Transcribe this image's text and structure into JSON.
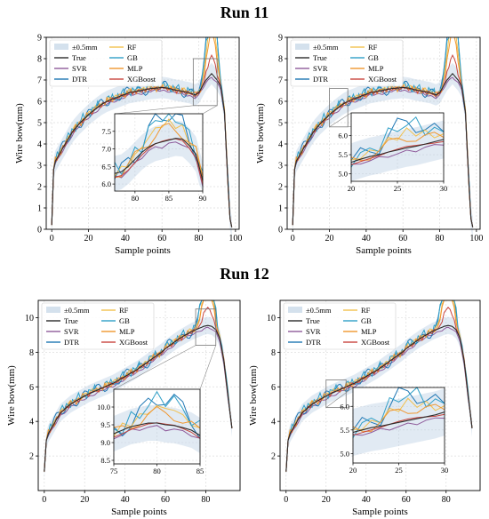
{
  "figure": {
    "run_titles": [
      "Run 11",
      "Run 12"
    ]
  },
  "legend_entries": [
    "±0.5mm",
    "True",
    "SVR",
    "DTR",
    "RF",
    "GB",
    "MLP",
    "XGBoost"
  ],
  "series_colors": {
    "True": "#2b2b2b",
    "SVR": "#8e5a9a",
    "DTR": "#1f77b4",
    "RF": "#f2c14e",
    "GB": "#2f9fc7",
    "MLP": "#f0962e",
    "XGBoost": "#c9453e",
    "band": "#aac4dc"
  },
  "chart_data": [
    {
      "type": "line",
      "run": "Run 11",
      "xlabel": "Sample points",
      "ylabel": "Wire bow(mm)",
      "xlim": [
        -3,
        102
      ],
      "ylim": [
        0,
        9
      ],
      "xticks": [
        0,
        20,
        40,
        60,
        80,
        100
      ],
      "yticks": [
        0,
        1,
        2,
        3,
        4,
        5,
        6,
        7,
        8,
        9
      ],
      "grid": true,
      "legend_position": "top-left",
      "band": "±0.5mm around True",
      "true_x": [
        0,
        1,
        2,
        4,
        6,
        8,
        10,
        12,
        15,
        18,
        21,
        24,
        27,
        30,
        33,
        36,
        39,
        42,
        45,
        48,
        51,
        54,
        57,
        60,
        63,
        66,
        69,
        72,
        75,
        78,
        80,
        82,
        84,
        86,
        87,
        88,
        90,
        92,
        94,
        96,
        97,
        98
      ],
      "true_y": [
        0.2,
        2.8,
        3.2,
        3.5,
        3.8,
        4.1,
        4.4,
        4.65,
        4.95,
        5.2,
        5.45,
        5.65,
        5.85,
        6.0,
        6.1,
        6.2,
        6.3,
        6.4,
        6.45,
        6.5,
        6.55,
        6.6,
        6.62,
        6.65,
        6.62,
        6.55,
        6.5,
        6.45,
        6.4,
        6.3,
        6.4,
        6.7,
        7.0,
        7.2,
        7.3,
        7.2,
        7.0,
        6.7,
        5.5,
        2.0,
        0.5,
        0.1
      ],
      "zoom": {
        "xlim": [
          77,
          90
        ],
        "ylim": [
          5.8,
          8.0
        ],
        "xticks": [
          80,
          85,
          90
        ],
        "yticks": [
          6.0,
          6.5,
          7.0,
          7.5
        ],
        "ytick_labels": [
          "6.0",
          "6.5",
          "7.0",
          "7.5"
        ],
        "true_x": [
          77,
          78,
          79,
          80,
          81,
          82,
          83,
          84,
          85,
          86,
          87,
          88,
          89,
          90
        ],
        "true_y": [
          6.3,
          6.35,
          6.5,
          6.7,
          6.9,
          7.05,
          7.15,
          7.2,
          7.25,
          7.3,
          7.28,
          7.1,
          6.85,
          6.1
        ]
      }
    },
    {
      "type": "line",
      "run": "Run 11",
      "xlabel": "Sample points",
      "ylabel": "Wire bow(mm)",
      "xlim": [
        -3,
        102
      ],
      "ylim": [
        0,
        9
      ],
      "xticks": [
        0,
        20,
        40,
        60,
        80,
        100
      ],
      "yticks": [
        0,
        1,
        2,
        3,
        4,
        5,
        6,
        7,
        8,
        9
      ],
      "grid": true,
      "legend_position": "top-left",
      "band": "±0.5mm around True",
      "true_x": [
        0,
        1,
        2,
        4,
        6,
        8,
        10,
        12,
        15,
        18,
        21,
        24,
        27,
        30,
        33,
        36,
        39,
        42,
        45,
        48,
        51,
        54,
        57,
        60,
        63,
        66,
        69,
        72,
        75,
        78,
        80,
        82,
        84,
        86,
        87,
        88,
        90,
        92,
        94,
        96,
        97,
        98
      ],
      "true_y": [
        0.2,
        2.8,
        3.2,
        3.5,
        3.8,
        4.1,
        4.4,
        4.65,
        4.95,
        5.2,
        5.45,
        5.65,
        5.85,
        6.0,
        6.1,
        6.2,
        6.3,
        6.4,
        6.45,
        6.5,
        6.55,
        6.6,
        6.62,
        6.65,
        6.62,
        6.55,
        6.5,
        6.45,
        6.4,
        6.3,
        6.4,
        6.7,
        7.0,
        7.2,
        7.3,
        7.2,
        7.0,
        6.7,
        5.5,
        2.0,
        0.5,
        0.1
      ],
      "zoom": {
        "xlim": [
          20,
          30
        ],
        "ylim": [
          4.8,
          6.6
        ],
        "xticks": [
          20,
          25,
          30
        ],
        "yticks": [
          5.0,
          5.5,
          6.0
        ],
        "ytick_labels": [
          "5.0",
          "5.5",
          "6.0"
        ],
        "true_x": [
          20,
          21,
          22,
          23,
          24,
          25,
          26,
          27,
          28,
          29,
          30
        ],
        "true_y": [
          5.3,
          5.38,
          5.45,
          5.5,
          5.57,
          5.62,
          5.68,
          5.72,
          5.78,
          5.84,
          5.9
        ]
      }
    },
    {
      "type": "line",
      "run": "Run 12",
      "xlabel": "Sample points",
      "ylabel": "Wire bow(mm)",
      "xlim": [
        -3,
        97
      ],
      "ylim": [
        0,
        11
      ],
      "xticks": [
        0,
        20,
        40,
        60,
        80
      ],
      "yticks": [
        2,
        4,
        6,
        8,
        10
      ],
      "grid": true,
      "legend_position": "top-left",
      "band": "±0.5mm around True",
      "true_x": [
        0,
        1,
        2,
        4,
        6,
        8,
        10,
        13,
        16,
        19,
        22,
        25,
        28,
        31,
        34,
        37,
        40,
        43,
        46,
        49,
        52,
        55,
        58,
        61,
        64,
        67,
        70,
        73,
        76,
        79,
        81,
        83,
        85,
        87,
        89,
        91,
        93
      ],
      "true_y": [
        1.1,
        2.9,
        3.3,
        3.7,
        4.1,
        4.5,
        4.7,
        5.0,
        5.2,
        5.4,
        5.6,
        5.75,
        5.9,
        6.05,
        6.2,
        6.4,
        6.6,
        6.8,
        7.0,
        7.25,
        7.5,
        7.75,
        8.0,
        8.3,
        8.55,
        8.8,
        9.0,
        9.2,
        9.35,
        9.5,
        9.55,
        9.5,
        9.3,
        8.8,
        7.5,
        5.5,
        3.6
      ],
      "zoom": {
        "xlim": [
          75,
          85
        ],
        "ylim": [
          8.4,
          10.5
        ],
        "xticks": [
          75,
          80,
          85
        ],
        "yticks": [
          8.5,
          9.0,
          9.5,
          10.0
        ],
        "ytick_labels": [
          "8.5",
          "9.0",
          "9.5",
          "10.0"
        ],
        "true_x": [
          75,
          76,
          77,
          78,
          79,
          80,
          81,
          82,
          83,
          84,
          85
        ],
        "true_y": [
          9.25,
          9.35,
          9.45,
          9.5,
          9.55,
          9.55,
          9.5,
          9.48,
          9.42,
          9.35,
          9.2
        ]
      }
    },
    {
      "type": "line",
      "run": "Run 12",
      "xlabel": "Sample points",
      "ylabel": "Wire bow(mm)",
      "xlim": [
        -3,
        97
      ],
      "ylim": [
        0,
        11
      ],
      "xticks": [
        0,
        20,
        40,
        60,
        80
      ],
      "yticks": [
        2,
        4,
        6,
        8,
        10
      ],
      "grid": true,
      "legend_position": "top-left",
      "band": "±0.5mm around True",
      "true_x": [
        0,
        1,
        2,
        4,
        6,
        8,
        10,
        13,
        16,
        19,
        22,
        25,
        28,
        31,
        34,
        37,
        40,
        43,
        46,
        49,
        52,
        55,
        58,
        61,
        64,
        67,
        70,
        73,
        76,
        79,
        81,
        83,
        85,
        87,
        89,
        91,
        93
      ],
      "true_y": [
        1.1,
        2.9,
        3.3,
        3.7,
        4.1,
        4.5,
        4.7,
        5.0,
        5.2,
        5.4,
        5.6,
        5.75,
        5.9,
        6.05,
        6.2,
        6.4,
        6.6,
        6.8,
        7.0,
        7.25,
        7.5,
        7.75,
        8.0,
        8.3,
        8.55,
        8.8,
        9.0,
        9.2,
        9.35,
        9.5,
        9.55,
        9.5,
        9.3,
        8.8,
        7.5,
        5.5,
        3.6
      ],
      "zoom": {
        "xlim": [
          20,
          30
        ],
        "ylim": [
          4.8,
          6.4
        ],
        "xticks": [
          20,
          25,
          30
        ],
        "yticks": [
          5.0,
          5.5,
          6.0
        ],
        "ytick_labels": [
          "5.0",
          "5.5",
          "6.0"
        ],
        "true_x": [
          20,
          21,
          22,
          23,
          24,
          25,
          26,
          27,
          28,
          29,
          30
        ],
        "true_y": [
          5.45,
          5.5,
          5.55,
          5.58,
          5.62,
          5.66,
          5.7,
          5.74,
          5.78,
          5.82,
          5.88
        ]
      }
    }
  ]
}
